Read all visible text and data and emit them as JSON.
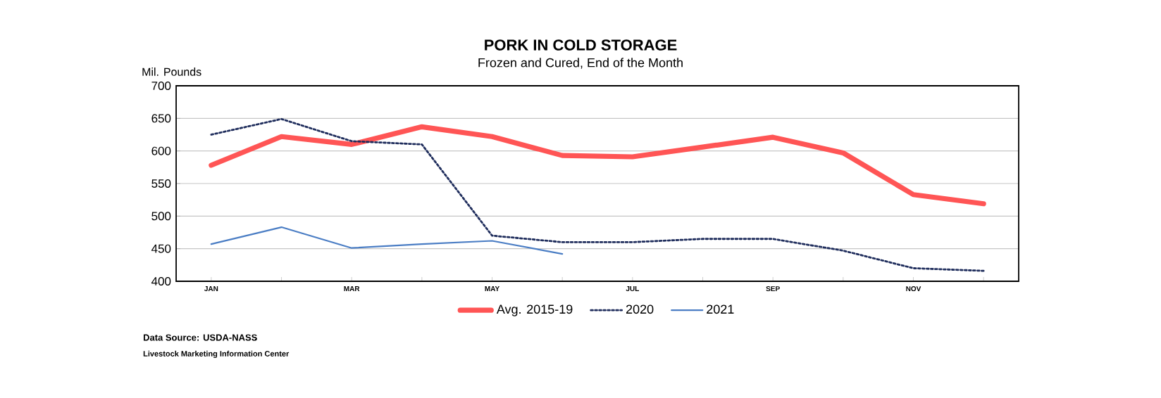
{
  "chart_data": {
    "type": "line",
    "title": "PORK IN COLD STORAGE",
    "subtitle": "Frozen and Cured, End of the Month",
    "ylabel": "Mil. Pounds",
    "categories": [
      "JAN",
      null,
      "MAR",
      null,
      "MAY",
      null,
      "JUL",
      null,
      "SEP",
      null,
      "NOV",
      null
    ],
    "series": [
      {
        "name": "Avg. 2015-19",
        "color": "#ff5555",
        "line_style": "solid",
        "values": [
          578,
          622,
          610,
          637,
          622,
          593,
          591,
          606,
          621,
          597,
          533,
          519
        ]
      },
      {
        "name": "2020",
        "color": "#1f2d5c",
        "line_style": "dotted",
        "values": [
          625,
          649,
          615,
          610,
          470,
          460,
          460,
          465,
          465,
          447,
          420,
          416
        ]
      },
      {
        "name": "2021",
        "color": "#4a7dc4",
        "line_style": "solid",
        "values": [
          457,
          483,
          451,
          457,
          462,
          442,
          null,
          null,
          null,
          null,
          null,
          null
        ]
      }
    ],
    "ylim": [
      400,
      700
    ],
    "yticks": [
      400,
      450,
      500,
      550,
      600,
      650,
      700
    ],
    "grid": "y",
    "legend": "bottom",
    "marker": "none",
    "annotations": [
      "Data Source:  USDA-NASS",
      "Livestock Marketing Information Center"
    ]
  }
}
